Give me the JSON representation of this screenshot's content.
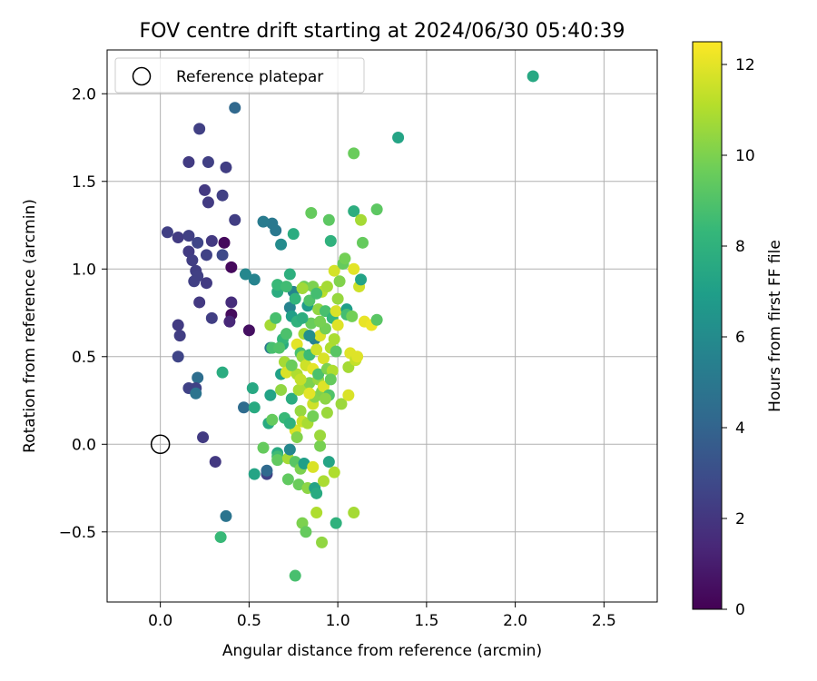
{
  "chart_data": {
    "type": "scatter",
    "title": "FOV centre drift starting at 2024/06/30 05:40:39",
    "xlabel": "Angular distance from reference (arcmin)",
    "ylabel": "Rotation from reference (arcmin)",
    "xlim": [
      -0.3,
      2.8
    ],
    "ylim": [
      -0.9,
      2.25
    ],
    "xticks": [
      "0.0",
      "0.5",
      "1.0",
      "1.5",
      "2.0",
      "2.5"
    ],
    "yticks": [
      "−0.5",
      "0.0",
      "0.5",
      "1.0",
      "1.5",
      "2.0"
    ],
    "grid": true,
    "legend": {
      "position": "top-left",
      "entries": [
        {
          "label": "Reference platepar",
          "marker": "open-circle"
        }
      ]
    },
    "reference_point": {
      "x": 0.0,
      "y": 0.0
    },
    "colorbar": {
      "label": "Hours from first FF file",
      "colormap": "viridis",
      "range": [
        0,
        12.5
      ],
      "ticks": [
        "0",
        "2",
        "4",
        "6",
        "8",
        "10",
        "12"
      ],
      "colors": [
        "#440154",
        "#482878",
        "#3e4989",
        "#31688e",
        "#26828e",
        "#1f9e89",
        "#35b779",
        "#6ece58",
        "#b5de2b",
        "#fde725"
      ]
    },
    "points": [
      {
        "x": 0.42,
        "y": 1.92,
        "h": 4.2
      },
      {
        "x": 0.22,
        "y": 1.8,
        "h": 2.4
      },
      {
        "x": 0.16,
        "y": 1.61,
        "h": 2.2
      },
      {
        "x": 0.27,
        "y": 1.61,
        "h": 2.4
      },
      {
        "x": 0.37,
        "y": 1.58,
        "h": 2.3
      },
      {
        "x": 0.25,
        "y": 1.45,
        "h": 2.1
      },
      {
        "x": 0.35,
        "y": 1.42,
        "h": 2.4
      },
      {
        "x": 0.27,
        "y": 1.38,
        "h": 2.2
      },
      {
        "x": 0.42,
        "y": 1.28,
        "h": 2.3
      },
      {
        "x": 0.04,
        "y": 1.21,
        "h": 2.4
      },
      {
        "x": 0.1,
        "y": 1.18,
        "h": 2.2
      },
      {
        "x": 0.16,
        "y": 1.19,
        "h": 2.4
      },
      {
        "x": 0.21,
        "y": 1.15,
        "h": 2.6
      },
      {
        "x": 0.29,
        "y": 1.16,
        "h": 2.1
      },
      {
        "x": 0.36,
        "y": 1.15,
        "h": 0.3
      },
      {
        "x": 0.16,
        "y": 1.1,
        "h": 2.2
      },
      {
        "x": 0.18,
        "y": 1.05,
        "h": 2.3
      },
      {
        "x": 0.26,
        "y": 1.08,
        "h": 2.5
      },
      {
        "x": 0.35,
        "y": 1.08,
        "h": 2.8
      },
      {
        "x": 0.2,
        "y": 0.99,
        "h": 2.3
      },
      {
        "x": 0.21,
        "y": 0.96,
        "h": 2.4
      },
      {
        "x": 0.4,
        "y": 1.01,
        "h": 0.3
      },
      {
        "x": 0.19,
        "y": 0.93,
        "h": 2.4
      },
      {
        "x": 0.26,
        "y": 0.92,
        "h": 2.2
      },
      {
        "x": 0.22,
        "y": 0.81,
        "h": 2.1
      },
      {
        "x": 0.4,
        "y": 0.81,
        "h": 1.6
      },
      {
        "x": 0.4,
        "y": 0.74,
        "h": 0.4
      },
      {
        "x": 0.29,
        "y": 0.72,
        "h": 2.3
      },
      {
        "x": 0.39,
        "y": 0.7,
        "h": 1.4
      },
      {
        "x": 0.1,
        "y": 0.68,
        "h": 2.2
      },
      {
        "x": 0.11,
        "y": 0.62,
        "h": 2.3
      },
      {
        "x": 0.5,
        "y": 0.65,
        "h": 0.5
      },
      {
        "x": 0.1,
        "y": 0.5,
        "h": 2.6
      },
      {
        "x": 0.21,
        "y": 0.38,
        "h": 4.5
      },
      {
        "x": 0.16,
        "y": 0.32,
        "h": 2.5
      },
      {
        "x": 0.2,
        "y": 0.32,
        "h": 2.5
      },
      {
        "x": 0.2,
        "y": 0.29,
        "h": 4.8
      },
      {
        "x": 0.24,
        "y": 0.04,
        "h": 2.2
      },
      {
        "x": 0.31,
        "y": -0.1,
        "h": 2.1
      },
      {
        "x": 0.37,
        "y": -0.41,
        "h": 4.8
      },
      {
        "x": 0.35,
        "y": 0.41,
        "h": 7.7
      },
      {
        "x": 0.34,
        "y": -0.53,
        "h": 8.4
      },
      {
        "x": 0.47,
        "y": 0.21,
        "h": 4.4
      },
      {
        "x": 0.52,
        "y": 0.32,
        "h": 7.5
      },
      {
        "x": 0.53,
        "y": 0.21,
        "h": 7.6
      },
      {
        "x": 0.53,
        "y": -0.17,
        "h": 7.3
      },
      {
        "x": 0.6,
        "y": -0.17,
        "h": 2.5
      },
      {
        "x": 0.6,
        "y": -0.15,
        "h": 4.3
      },
      {
        "x": 0.58,
        "y": -0.02,
        "h": 9.5
      },
      {
        "x": 0.61,
        "y": 0.12,
        "h": 7.6
      },
      {
        "x": 0.62,
        "y": 0.28,
        "h": 7.2
      },
      {
        "x": 0.62,
        "y": 0.55,
        "h": 5.2
      },
      {
        "x": 0.63,
        "y": 0.55,
        "h": 8.8
      },
      {
        "x": 0.62,
        "y": 0.68,
        "h": 10.8
      },
      {
        "x": 0.63,
        "y": 0.14,
        "h": 9.5
      },
      {
        "x": 0.65,
        "y": 0.72,
        "h": 8.8
      },
      {
        "x": 0.66,
        "y": 0.87,
        "h": 7.7
      },
      {
        "x": 0.66,
        "y": 0.91,
        "h": 8.4
      },
      {
        "x": 0.66,
        "y": -0.05,
        "h": 7.6
      },
      {
        "x": 0.66,
        "y": -0.07,
        "h": 8.6
      },
      {
        "x": 0.66,
        "y": -0.09,
        "h": 9.4
      },
      {
        "x": 0.68,
        "y": 0.4,
        "h": 7.1
      },
      {
        "x": 0.69,
        "y": 0.57,
        "h": 7.6
      },
      {
        "x": 0.69,
        "y": 0.6,
        "h": 8.3
      },
      {
        "x": 0.7,
        "y": 0.15,
        "h": 8.4
      },
      {
        "x": 0.7,
        "y": 0.47,
        "h": 10.8
      },
      {
        "x": 0.71,
        "y": 0.41,
        "h": 11.8
      },
      {
        "x": 0.72,
        "y": -0.2,
        "h": 9.4
      },
      {
        "x": 0.72,
        "y": -0.08,
        "h": 10.8
      },
      {
        "x": 0.73,
        "y": -0.03,
        "h": 5.8
      },
      {
        "x": 0.73,
        "y": 0.78,
        "h": 5.6
      },
      {
        "x": 0.74,
        "y": 0.26,
        "h": 7.7
      },
      {
        "x": 0.74,
        "y": 0.73,
        "h": 7.0
      },
      {
        "x": 0.75,
        "y": 0.87,
        "h": 5.7
      },
      {
        "x": 0.75,
        "y": 1.2,
        "h": 7.7
      },
      {
        "x": 0.76,
        "y": -0.75,
        "h": 8.8
      },
      {
        "x": 0.76,
        "y": -0.1,
        "h": 9.2
      },
      {
        "x": 0.76,
        "y": 0.08,
        "h": 11.8
      },
      {
        "x": 0.77,
        "y": 0.4,
        "h": 11.0
      },
      {
        "x": 0.77,
        "y": 0.57,
        "h": 12.0
      },
      {
        "x": 0.77,
        "y": 0.7,
        "h": 8.0
      },
      {
        "x": 0.78,
        "y": -0.23,
        "h": 9.6
      },
      {
        "x": 0.78,
        "y": 0.31,
        "h": 10.9
      },
      {
        "x": 0.79,
        "y": -0.14,
        "h": 10.0
      },
      {
        "x": 0.79,
        "y": 0.19,
        "h": 10.5
      },
      {
        "x": 0.79,
        "y": 0.52,
        "h": 8.8
      },
      {
        "x": 0.8,
        "y": -0.45,
        "h": 10.0
      },
      {
        "x": 0.8,
        "y": 0.13,
        "h": 11.5
      },
      {
        "x": 0.8,
        "y": 0.5,
        "h": 10.6
      },
      {
        "x": 0.81,
        "y": -0.11,
        "h": 7.0
      },
      {
        "x": 0.81,
        "y": 0.9,
        "h": 9.7
      },
      {
        "x": 0.81,
        "y": 0.63,
        "h": 10.8
      },
      {
        "x": 0.82,
        "y": -0.5,
        "h": 9.5
      },
      {
        "x": 0.82,
        "y": 0.34,
        "h": 10.9
      },
      {
        "x": 0.82,
        "y": 0.45,
        "h": 11.6
      },
      {
        "x": 0.83,
        "y": -0.25,
        "h": 10.3
      },
      {
        "x": 0.83,
        "y": 0.12,
        "h": 10.9
      },
      {
        "x": 0.83,
        "y": 0.79,
        "h": 6.8
      },
      {
        "x": 0.84,
        "y": 0.35,
        "h": 10.0
      },
      {
        "x": 0.84,
        "y": 0.51,
        "h": 8.5
      },
      {
        "x": 0.84,
        "y": 0.82,
        "h": 9.0
      },
      {
        "x": 0.85,
        "y": 1.32,
        "h": 9.5
      },
      {
        "x": 0.85,
        "y": 0.69,
        "h": 9.6
      },
      {
        "x": 0.86,
        "y": -0.13,
        "h": 11.8
      },
      {
        "x": 0.86,
        "y": 0.23,
        "h": 11.6
      },
      {
        "x": 0.86,
        "y": 0.43,
        "h": 12.0
      },
      {
        "x": 0.86,
        "y": 0.9,
        "h": 10.0
      },
      {
        "x": 0.87,
        "y": 0.6,
        "h": 5.5
      },
      {
        "x": 0.87,
        "y": -0.25,
        "h": 7.2
      },
      {
        "x": 0.87,
        "y": 0.27,
        "h": 10.2
      },
      {
        "x": 0.88,
        "y": -0.28,
        "h": 7.6
      },
      {
        "x": 0.88,
        "y": -0.39,
        "h": 11.0
      },
      {
        "x": 0.88,
        "y": 0.54,
        "h": 11.6
      },
      {
        "x": 0.89,
        "y": 0.37,
        "h": 10.5
      },
      {
        "x": 0.89,
        "y": 0.77,
        "h": 10.4
      },
      {
        "x": 0.89,
        "y": 0.4,
        "h": 8.9
      },
      {
        "x": 0.9,
        "y": -0.01,
        "h": 9.9
      },
      {
        "x": 0.9,
        "y": 0.05,
        "h": 10.6
      },
      {
        "x": 0.9,
        "y": 0.62,
        "h": 11.8
      },
      {
        "x": 0.91,
        "y": -0.56,
        "h": 10.4
      },
      {
        "x": 0.91,
        "y": 0.3,
        "h": 10.1
      },
      {
        "x": 0.91,
        "y": 0.87,
        "h": 11.2
      },
      {
        "x": 0.92,
        "y": -0.21,
        "h": 10.9
      },
      {
        "x": 0.92,
        "y": 0.33,
        "h": 11.9
      },
      {
        "x": 0.92,
        "y": 0.49,
        "h": 11.8
      },
      {
        "x": 0.93,
        "y": 0.66,
        "h": 9.8
      },
      {
        "x": 0.93,
        "y": 0.76,
        "h": 8.8
      },
      {
        "x": 0.94,
        "y": 0.9,
        "h": 10.8
      },
      {
        "x": 0.94,
        "y": 0.43,
        "h": 10.0
      },
      {
        "x": 0.95,
        "y": 0.28,
        "h": 9.0
      },
      {
        "x": 0.95,
        "y": 1.28,
        "h": 9.3
      },
      {
        "x": 0.95,
        "y": -0.1,
        "h": 7.3
      },
      {
        "x": 0.96,
        "y": 0.55,
        "h": 11.0
      },
      {
        "x": 0.96,
        "y": 1.16,
        "h": 8.0
      },
      {
        "x": 0.97,
        "y": 0.42,
        "h": 11.0
      },
      {
        "x": 0.97,
        "y": 0.72,
        "h": 8.2
      },
      {
        "x": 0.98,
        "y": -0.16,
        "h": 11.0
      },
      {
        "x": 0.98,
        "y": 0.6,
        "h": 10.9
      },
      {
        "x": 0.98,
        "y": 0.99,
        "h": 11.7
      },
      {
        "x": 0.99,
        "y": -0.45,
        "h": 8.0
      },
      {
        "x": 0.99,
        "y": 0.76,
        "h": 11.8
      },
      {
        "x": 1.0,
        "y": 0.68,
        "h": 11.9
      },
      {
        "x": 1.0,
        "y": 0.83,
        "h": 10.5
      },
      {
        "x": 1.01,
        "y": 0.93,
        "h": 10.1
      },
      {
        "x": 1.02,
        "y": 0.23,
        "h": 10.6
      },
      {
        "x": 1.03,
        "y": 1.03,
        "h": 9.5
      },
      {
        "x": 1.04,
        "y": 1.06,
        "h": 9.8
      },
      {
        "x": 1.05,
        "y": 0.77,
        "h": 7.0
      },
      {
        "x": 1.05,
        "y": 0.74,
        "h": 8.7
      },
      {
        "x": 1.06,
        "y": 0.28,
        "h": 11.8
      },
      {
        "x": 1.06,
        "y": 0.44,
        "h": 10.8
      },
      {
        "x": 1.07,
        "y": 0.52,
        "h": 11.9
      },
      {
        "x": 1.08,
        "y": 0.73,
        "h": 9.8
      },
      {
        "x": 1.09,
        "y": -0.39,
        "h": 10.8
      },
      {
        "x": 1.09,
        "y": 1.0,
        "h": 12.0
      },
      {
        "x": 1.09,
        "y": 1.66,
        "h": 9.6
      },
      {
        "x": 1.09,
        "y": 1.33,
        "h": 7.8
      },
      {
        "x": 1.1,
        "y": 0.48,
        "h": 11.4
      },
      {
        "x": 1.11,
        "y": 0.5,
        "h": 11.9
      },
      {
        "x": 1.12,
        "y": 0.9,
        "h": 11.6
      },
      {
        "x": 1.13,
        "y": 1.28,
        "h": 10.8
      },
      {
        "x": 1.13,
        "y": 0.94,
        "h": 7.2
      },
      {
        "x": 1.14,
        "y": 1.15,
        "h": 9.5
      },
      {
        "x": 1.15,
        "y": 0.7,
        "h": 12.1
      },
      {
        "x": 1.19,
        "y": 0.68,
        "h": 12.2
      },
      {
        "x": 1.22,
        "y": 1.34,
        "h": 9.3
      },
      {
        "x": 1.22,
        "y": 0.71,
        "h": 9.2
      },
      {
        "x": 1.34,
        "y": 1.75,
        "h": 7.3
      },
      {
        "x": 2.1,
        "y": 2.1,
        "h": 7.5
      },
      {
        "x": 0.67,
        "y": 0.55,
        "h": 9.0
      },
      {
        "x": 0.74,
        "y": 0.45,
        "h": 9.6
      },
      {
        "x": 0.79,
        "y": 0.37,
        "h": 11.4
      },
      {
        "x": 0.84,
        "y": 0.29,
        "h": 12.0
      },
      {
        "x": 0.88,
        "y": 0.86,
        "h": 8.7
      },
      {
        "x": 0.9,
        "y": 0.7,
        "h": 9.9
      },
      {
        "x": 0.93,
        "y": 0.26,
        "h": 10.3
      },
      {
        "x": 0.84,
        "y": 0.62,
        "h": 6.2
      },
      {
        "x": 0.8,
        "y": 0.72,
        "h": 7.8
      },
      {
        "x": 0.76,
        "y": 0.83,
        "h": 8.2
      },
      {
        "x": 0.71,
        "y": 0.63,
        "h": 8.9
      },
      {
        "x": 0.68,
        "y": 0.31,
        "h": 10.4
      },
      {
        "x": 0.73,
        "y": 0.12,
        "h": 8.0
      },
      {
        "x": 0.77,
        "y": 0.04,
        "h": 10.1
      },
      {
        "x": 0.96,
        "y": 0.37,
        "h": 9.5
      },
      {
        "x": 0.99,
        "y": 0.53,
        "h": 9.2
      },
      {
        "x": 0.94,
        "y": 0.18,
        "h": 10.6
      },
      {
        "x": 0.86,
        "y": 0.16,
        "h": 9.8
      },
      {
        "x": 0.8,
        "y": 0.89,
        "h": 10.7
      },
      {
        "x": 0.63,
        "y": 1.26,
        "h": 5.0
      },
      {
        "x": 0.58,
        "y": 1.27,
        "h": 5.2
      },
      {
        "x": 0.65,
        "y": 1.22,
        "h": 5.0
      },
      {
        "x": 0.68,
        "y": 1.14,
        "h": 6.0
      },
      {
        "x": 0.53,
        "y": 0.94,
        "h": 5.6
      },
      {
        "x": 0.48,
        "y": 0.97,
        "h": 5.8
      },
      {
        "x": 0.73,
        "y": 0.97,
        "h": 7.9
      },
      {
        "x": 0.71,
        "y": 0.9,
        "h": 8.6
      }
    ]
  }
}
